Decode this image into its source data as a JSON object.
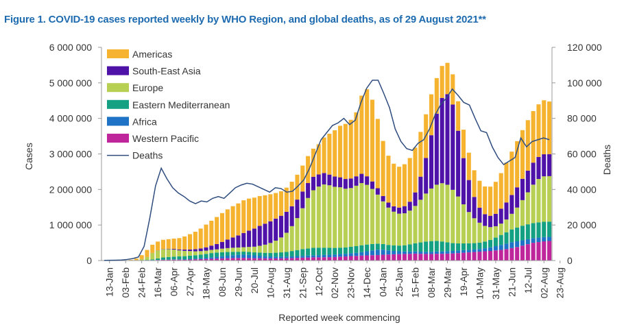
{
  "title": "Figure 1. COVID-19 cases reported weekly by WHO Region, and global deaths, as of 29 August 2021**",
  "chart_data": {
    "type": "bar",
    "stacked": true,
    "xlabel": "Reported week commencing",
    "ylabel": "Cases",
    "y2label": "Deaths",
    "ylim": [
      0,
      6000000
    ],
    "y2lim": [
      0,
      120000
    ],
    "yticks": [
      0,
      1000000,
      2000000,
      3000000,
      4000000,
      5000000,
      6000000
    ],
    "yticklabels": [
      "0",
      "1 000 000",
      "2 000 000",
      "3 000 000",
      "4 000 000",
      "5 000 000",
      "6 000 000"
    ],
    "y2ticks": [
      0,
      20000,
      40000,
      60000,
      80000,
      100000,
      120000
    ],
    "y2ticklabels": [
      "0",
      "20 000",
      "40 000",
      "60 000",
      "80 000",
      "100 000",
      "120 000"
    ],
    "xticklabels": [
      "13-Jan",
      "03-Feb",
      "24-Feb",
      "16-Mar",
      "06-Apr",
      "27-Apr",
      "18-May",
      "08-Jun",
      "29-Jun",
      "20-Jul",
      "10-Aug",
      "31-Aug",
      "21-Sep",
      "12-Oct",
      "02-Nov",
      "23-Nov",
      "14-Dec",
      "04-Jan",
      "25-Jan",
      "15-Feb",
      "08-Mar",
      "29-Mar",
      "19-Apr",
      "10-May",
      "31-May",
      "21-Jun",
      "12-Jul",
      "02-Aug",
      "23-Aug"
    ],
    "grid": false,
    "legend_position": "top-left",
    "series": [
      {
        "name": "Western Pacific",
        "color": "#c0269b",
        "values": [
          2000,
          2000,
          3000,
          4000,
          5000,
          5000,
          5000,
          5000,
          6000,
          10000,
          15000,
          20000,
          22000,
          25000,
          25000,
          24000,
          30000,
          35000,
          40000,
          45000,
          50000,
          55000,
          60000,
          65000,
          70000,
          72000,
          75000,
          70000,
          65000,
          65000,
          62000,
          60000,
          60000,
          62000,
          65000,
          70000,
          75000,
          80000,
          85000,
          90000,
          90000,
          92000,
          95000,
          100000,
          110000,
          115000,
          125000,
          130000,
          140000,
          145000,
          150000,
          155000,
          165000,
          170000,
          175000,
          180000,
          185000,
          190000,
          195000,
          190000,
          185000,
          185000,
          190000,
          190000,
          195000,
          200000,
          210000,
          220000,
          230000,
          240000,
          250000,
          260000,
          270000,
          285000,
          300000,
          320000,
          350000,
          380000,
          420000,
          460000,
          500000,
          520000,
          540000,
          550000
        ]
      },
      {
        "name": "Africa",
        "color": "#1f73c7",
        "values": [
          0,
          0,
          0,
          0,
          0,
          0,
          0,
          0,
          1000,
          2000,
          4000,
          6000,
          8000,
          10000,
          12000,
          14000,
          17000,
          20000,
          25000,
          32000,
          40000,
          50000,
          60000,
          70000,
          80000,
          85000,
          90000,
          88000,
          80000,
          70000,
          60000,
          55000,
          50000,
          48000,
          47000,
          48000,
          50000,
          52000,
          55000,
          58000,
          62000,
          65000,
          68000,
          70000,
          72000,
          75000,
          80000,
          85000,
          95000,
          115000,
          135000,
          150000,
          140000,
          115000,
          95000,
          80000,
          70000,
          65000,
          62000,
          60000,
          60000,
          62000,
          64000,
          66000,
          68000,
          70000,
          72000,
          72000,
          70000,
          70000,
          75000,
          85000,
          100000,
          120000,
          140000,
          155000,
          165000,
          160000,
          150000,
          140000,
          130000,
          125000,
          120000,
          115000
        ]
      },
      {
        "name": "Eastern Mediterranean",
        "color": "#13a083",
        "values": [
          0,
          0,
          0,
          0,
          0,
          0,
          0,
          5000,
          10000,
          20000,
          40000,
          60000,
          70000,
          75000,
          80000,
          85000,
          90000,
          95000,
          100000,
          110000,
          120000,
          120000,
          115000,
          105000,
          95000,
          90000,
          85000,
          85000,
          85000,
          90000,
          95000,
          100000,
          110000,
          120000,
          130000,
          150000,
          170000,
          190000,
          200000,
          210000,
          210000,
          205000,
          195000,
          185000,
          180000,
          180000,
          185000,
          190000,
          195000,
          190000,
          180000,
          170000,
          160000,
          155000,
          155000,
          160000,
          175000,
          200000,
          230000,
          260000,
          290000,
          300000,
          300000,
          280000,
          250000,
          220000,
          200000,
          190000,
          185000,
          180000,
          180000,
          190000,
          210000,
          240000,
          280000,
          320000,
          360000,
          390000,
          410000,
          420000,
          425000,
          430000,
          430000,
          430000
        ]
      },
      {
        "name": "Europe",
        "color": "#b7cf52",
        "values": [
          0,
          0,
          0,
          0,
          1000,
          3000,
          10000,
          30000,
          80000,
          180000,
          220000,
          230000,
          220000,
          200000,
          170000,
          150000,
          130000,
          110000,
          100000,
          90000,
          90000,
          90000,
          100000,
          110000,
          115000,
          120000,
          125000,
          140000,
          160000,
          190000,
          230000,
          280000,
          340000,
          420000,
          540000,
          700000,
          900000,
          1150000,
          1420000,
          1620000,
          1720000,
          1780000,
          1760000,
          1720000,
          1700000,
          1650000,
          1650000,
          1700000,
          1750000,
          1680000,
          1550000,
          1380000,
          1200000,
          1050000,
          950000,
          900000,
          900000,
          950000,
          1050000,
          1200000,
          1350000,
          1480000,
          1580000,
          1640000,
          1620000,
          1500000,
          1320000,
          1100000,
          880000,
          700000,
          560000,
          440000,
          360000,
          320000,
          320000,
          360000,
          440000,
          560000,
          720000,
          900000,
          1080000,
          1220000,
          1280000,
          1280000
        ]
      },
      {
        "name": "South-East Asia",
        "color": "#4f12a8",
        "values": [
          0,
          0,
          0,
          0,
          0,
          0,
          0,
          1000,
          2000,
          3000,
          5000,
          8000,
          12000,
          18000,
          25000,
          35000,
          45000,
          60000,
          75000,
          95000,
          120000,
          150000,
          190000,
          240000,
          290000,
          340000,
          400000,
          460000,
          510000,
          560000,
          590000,
          610000,
          620000,
          610000,
          590000,
          560000,
          520000,
          470000,
          420000,
          380000,
          340000,
          320000,
          300000,
          290000,
          280000,
          275000,
          270000,
          265000,
          260000,
          240000,
          210000,
          180000,
          150000,
          140000,
          150000,
          170000,
          200000,
          250000,
          380000,
          650000,
          1000000,
          1500000,
          2000000,
          2400000,
          2550000,
          2400000,
          1850000,
          1300000,
          900000,
          600000,
          420000,
          330000,
          320000,
          350000,
          420000,
          480000,
          530000,
          570000,
          600000,
          610000,
          620000,
          620000,
          620000,
          620000
        ]
      },
      {
        "name": "Americas",
        "color": "#f5b330",
        "values": [
          0,
          0,
          0,
          0,
          0,
          10000,
          40000,
          110000,
          200000,
          230000,
          250000,
          260000,
          270000,
          290000,
          320000,
          370000,
          430000,
          490000,
          560000,
          640000,
          700000,
          760000,
          810000,
          850000,
          880000,
          900000,
          920000,
          900000,
          870000,
          840000,
          800000,
          760000,
          720000,
          690000,
          680000,
          690000,
          700000,
          730000,
          760000,
          790000,
          850000,
          1000000,
          1150000,
          1300000,
          1450000,
          1550000,
          1650000,
          1800000,
          2200000,
          2450000,
          2300000,
          1950000,
          1550000,
          1320000,
          1200000,
          1150000,
          1180000,
          1230000,
          1260000,
          1260000,
          1230000,
          1150000,
          1000000,
          900000,
          880000,
          850000,
          830000,
          800000,
          770000,
          750000,
          760000,
          780000,
          820000,
          900000,
          1000000,
          1120000,
          1220000,
          1300000,
          1370000,
          1420000,
          1450000,
          1480000,
          1520000,
          1480000
        ]
      }
    ],
    "deaths": {
      "name": "Deaths",
      "color": "#2e4c7e",
      "values": [
        100,
        150,
        200,
        300,
        600,
        1100,
        2000,
        8000,
        24000,
        42000,
        52000,
        46000,
        41000,
        38000,
        36000,
        33500,
        32000,
        33500,
        33000,
        35000,
        36000,
        35000,
        38000,
        41000,
        42500,
        43500,
        43000,
        41500,
        40000,
        38500,
        41000,
        40500,
        38500,
        39000,
        42000,
        45500,
        52000,
        60000,
        68000,
        72000,
        76000,
        77500,
        80000,
        76500,
        79000,
        89000,
        97000,
        101500,
        101500,
        94000,
        86000,
        74000,
        67000,
        63000,
        62000,
        66000,
        68000,
        74000,
        82000,
        88000,
        91500,
        96500,
        93000,
        89000,
        87500,
        80000,
        73000,
        72000,
        64000,
        58000,
        54000,
        56000,
        58000,
        69000,
        64000,
        67000,
        68000,
        69000,
        68000
      ]
    }
  },
  "legend_order": [
    "Americas",
    "South-East Asia",
    "Europe",
    "Eastern Mediterranean",
    "Africa",
    "Western Pacific",
    "Deaths"
  ]
}
